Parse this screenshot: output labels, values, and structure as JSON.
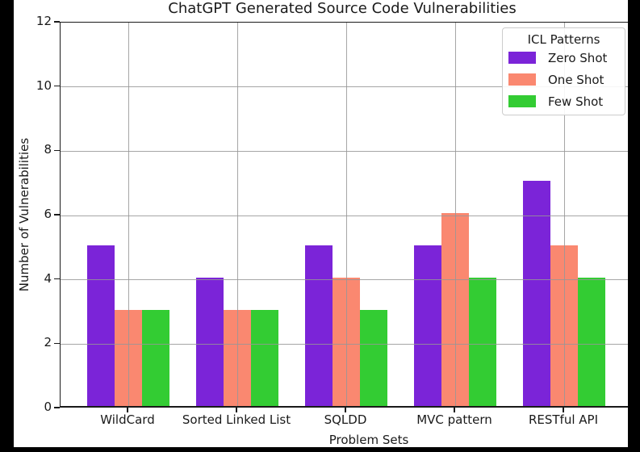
{
  "chart_data": {
    "type": "bar",
    "title": "ChatGPT Generated Source Code Vulnerabilities",
    "xlabel": "Problem Sets",
    "ylabel": "Number of Vulnerabilities",
    "categories": [
      "WildCard",
      "Sorted Linked List",
      "SQLDD",
      "MVC pattern",
      "RESTful API"
    ],
    "series": [
      {
        "name": "Zero Shot",
        "color": "#7B24D8",
        "values": [
          5,
          4,
          5,
          5,
          7
        ]
      },
      {
        "name": "One Shot",
        "color": "#FA8870",
        "values": [
          3,
          3,
          4,
          6,
          5
        ]
      },
      {
        "name": "Few Shot",
        "color": "#33CC33",
        "values": [
          3,
          3,
          3,
          4,
          4
        ]
      }
    ],
    "ylim": [
      0,
      12
    ],
    "yticks": [
      0,
      2,
      4,
      6,
      8,
      10,
      12
    ],
    "grid": true,
    "grid_color": "#969696",
    "legend": {
      "title": "ICL Patterns",
      "position": "upper right"
    },
    "colors": {
      "zero_shot": "#7B24D8",
      "one_shot": "#FA8870",
      "few_shot": "#33CC33",
      "background": "#FFFFFF",
      "outer_background": "#000000",
      "axis": "#1A1A1A"
    }
  }
}
